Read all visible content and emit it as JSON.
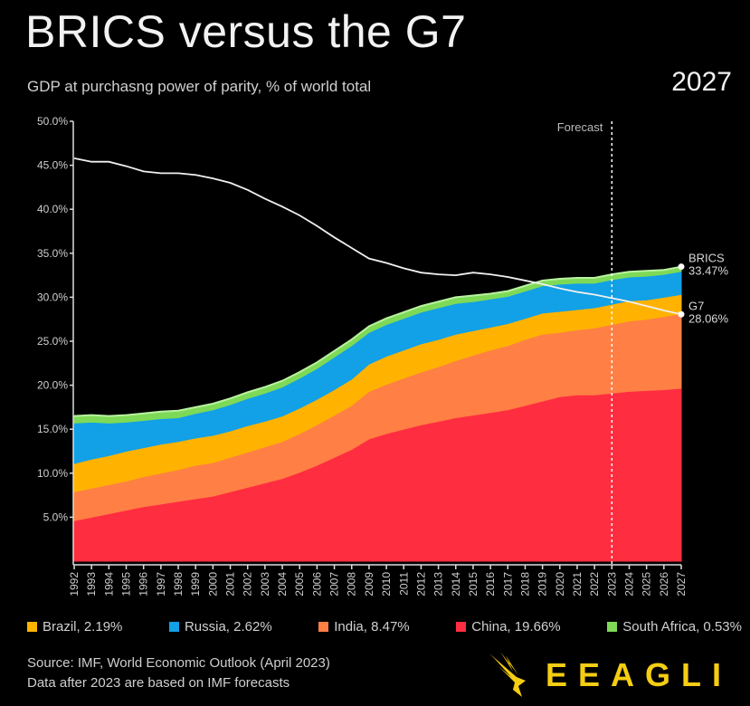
{
  "header": {
    "title": "BRICS versus the G7",
    "subtitle": "GDP at purchasng power of parity, % of world total",
    "year": "2027"
  },
  "chart_data": {
    "type": "area",
    "stacked": true,
    "title": "BRICS versus the G7",
    "ylabel": "GDP at PPP, % of world total",
    "ylim": [
      0,
      50
    ],
    "yticks": [
      "5.0%",
      "10.0%",
      "15.0%",
      "20.0%",
      "25.0%",
      "30.0%",
      "35.0%",
      "40.0%",
      "45.0%",
      "50.0%"
    ],
    "ytick_values": [
      5,
      10,
      15,
      20,
      25,
      30,
      35,
      40,
      45,
      50
    ],
    "x": [
      1992,
      1993,
      1994,
      1995,
      1996,
      1997,
      1998,
      1999,
      2000,
      2001,
      2002,
      2003,
      2004,
      2005,
      2006,
      2007,
      2008,
      2009,
      2010,
      2011,
      2012,
      2013,
      2014,
      2015,
      2016,
      2017,
      2018,
      2019,
      2020,
      2021,
      2022,
      2023,
      2024,
      2025,
      2026,
      2027
    ],
    "forecast_start": 2023,
    "forecast_label": "Forecast",
    "series": [
      {
        "name": "China",
        "color": "#ff2d40",
        "values": [
          4.6,
          5.0,
          5.4,
          5.8,
          6.2,
          6.5,
          6.8,
          7.1,
          7.4,
          7.9,
          8.4,
          8.9,
          9.4,
          10.1,
          10.9,
          11.8,
          12.7,
          13.9,
          14.5,
          15.0,
          15.5,
          15.9,
          16.3,
          16.6,
          16.9,
          17.2,
          17.7,
          18.2,
          18.7,
          18.9,
          18.9,
          19.1,
          19.3,
          19.4,
          19.5,
          19.66
        ]
      },
      {
        "name": "India",
        "color": "#ff7f45",
        "values": [
          3.3,
          3.3,
          3.3,
          3.3,
          3.4,
          3.5,
          3.6,
          3.8,
          3.8,
          3.9,
          4.0,
          4.1,
          4.2,
          4.4,
          4.6,
          4.8,
          5.0,
          5.4,
          5.6,
          5.8,
          6.0,
          6.2,
          6.5,
          6.8,
          7.1,
          7.3,
          7.5,
          7.6,
          7.3,
          7.4,
          7.6,
          7.8,
          8.0,
          8.1,
          8.3,
          8.47
        ]
      },
      {
        "name": "Brazil",
        "color": "#ffb300",
        "values": [
          3.2,
          3.3,
          3.3,
          3.4,
          3.3,
          3.3,
          3.2,
          3.1,
          3.1,
          3.0,
          3.0,
          2.9,
          2.9,
          2.9,
          2.9,
          2.9,
          3.0,
          3.1,
          3.2,
          3.2,
          3.2,
          3.1,
          3.0,
          2.8,
          2.6,
          2.5,
          2.4,
          2.4,
          2.4,
          2.3,
          2.3,
          2.3,
          2.3,
          2.2,
          2.2,
          2.19
        ]
      },
      {
        "name": "Russia",
        "color": "#12a0e6",
        "values": [
          4.6,
          4.2,
          3.7,
          3.3,
          3.1,
          2.9,
          2.7,
          2.8,
          2.9,
          3.0,
          3.1,
          3.2,
          3.3,
          3.4,
          3.5,
          3.7,
          3.8,
          3.6,
          3.6,
          3.6,
          3.6,
          3.6,
          3.5,
          3.3,
          3.2,
          3.1,
          3.1,
          3.1,
          3.1,
          3.0,
          2.8,
          2.8,
          2.7,
          2.7,
          2.6,
          2.62
        ]
      },
      {
        "name": "South Africa",
        "color": "#7ed957",
        "values": [
          0.8,
          0.8,
          0.8,
          0.8,
          0.8,
          0.8,
          0.8,
          0.7,
          0.7,
          0.7,
          0.7,
          0.7,
          0.7,
          0.7,
          0.7,
          0.7,
          0.7,
          0.7,
          0.7,
          0.7,
          0.7,
          0.7,
          0.7,
          0.7,
          0.6,
          0.6,
          0.6,
          0.6,
          0.6,
          0.6,
          0.6,
          0.6,
          0.6,
          0.6,
          0.5,
          0.53
        ]
      },
      {
        "name": "G7",
        "type": "line",
        "color": "#f0f0f0",
        "values": [
          45.8,
          45.4,
          45.4,
          44.9,
          44.3,
          44.1,
          44.1,
          43.9,
          43.5,
          43.0,
          42.2,
          41.2,
          40.3,
          39.3,
          38.1,
          36.8,
          35.6,
          34.4,
          33.9,
          33.3,
          32.8,
          32.6,
          32.5,
          32.8,
          32.6,
          32.3,
          31.9,
          31.5,
          31.0,
          30.6,
          30.3,
          29.9,
          29.5,
          29.0,
          28.5,
          28.06
        ]
      }
    ],
    "end_labels": [
      {
        "name": "BRICS",
        "value": "33.47%"
      },
      {
        "name": "G7",
        "value": "28.06%"
      }
    ],
    "legend": [
      {
        "label": "Brazil, 2.19%",
        "color": "#ffb300"
      },
      {
        "label": "Russia, 2.62%",
        "color": "#12a0e6"
      },
      {
        "label": "India, 8.47%",
        "color": "#ff7f45"
      },
      {
        "label": "China, 19.66%",
        "color": "#ff2d40"
      },
      {
        "label": "South Africa, 0.53%",
        "color": "#7ed957"
      }
    ]
  },
  "footer": {
    "source_line1": "Source: IMF, World Economic Outlook (April 2023)",
    "source_line2": "Data after 2023 are based on IMF forecasts",
    "logo_text": "EEAGLI"
  }
}
